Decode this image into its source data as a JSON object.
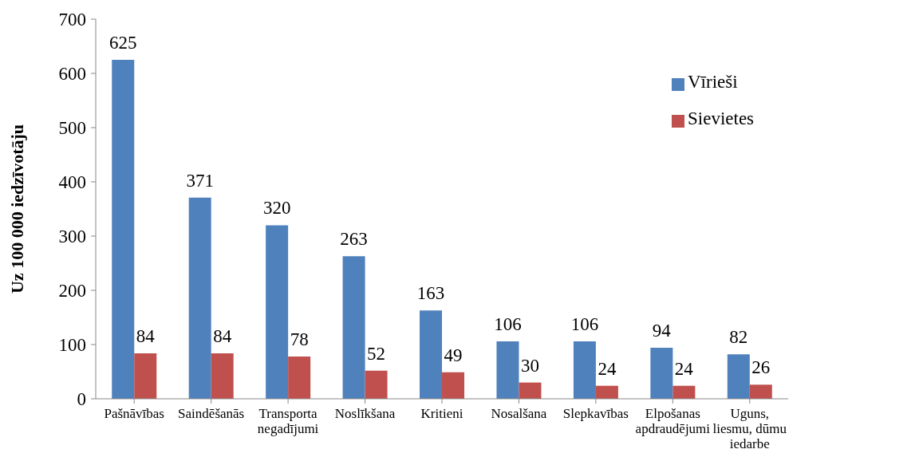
{
  "chart_data": {
    "type": "bar",
    "ylabel": "Uz 100 000 iedzīvotāju",
    "categories": [
      "Pašnāvības",
      "Saindēšanās",
      "Transporta negadījumi",
      "Noslīkšana",
      "Kritieni",
      "Nosalšana",
      "Slepkavības",
      "Elpošanas apdraudējumi",
      "Uguns, liesmu, dūmu iedarbe"
    ],
    "series": [
      {
        "name": "Vīrieši",
        "color": "#4f81bd",
        "values": [
          625,
          371,
          320,
          263,
          163,
          106,
          106,
          94,
          82
        ]
      },
      {
        "name": "Sievietes",
        "color": "#c0504d",
        "values": [
          84,
          84,
          78,
          52,
          49,
          30,
          24,
          24,
          26
        ]
      }
    ],
    "ylim": [
      0,
      700
    ],
    "yticks": [
      0,
      100,
      200,
      300,
      400,
      500,
      600,
      700
    ],
    "grid": false,
    "legend": "top right",
    "data_labels": true
  }
}
